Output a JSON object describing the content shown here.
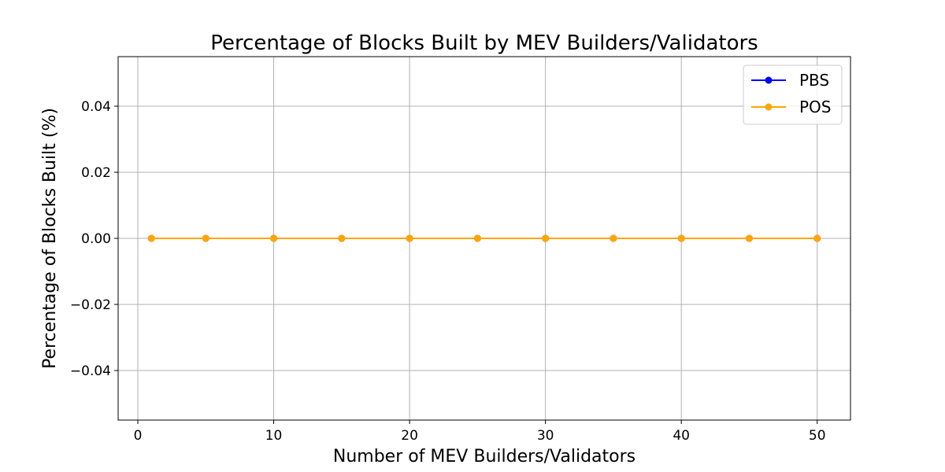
{
  "chart_data": {
    "type": "line",
    "title": "Percentage of Blocks Built by MEV Builders/Validators",
    "xlabel": "Number of MEV Builders/Validators",
    "ylabel": "Percentage of Blocks Built (%)",
    "xlim": [
      -1.45,
      52.45
    ],
    "ylim": [
      -0.055,
      0.055
    ],
    "xticks": [
      0,
      10,
      20,
      30,
      40,
      50
    ],
    "xtick_labels": [
      "0",
      "10",
      "20",
      "30",
      "40",
      "50"
    ],
    "yticks": [
      -0.04,
      -0.02,
      0.0,
      0.02,
      0.04
    ],
    "ytick_labels": [
      "−0.04",
      "−0.02",
      "0.00",
      "0.02",
      "0.04"
    ],
    "grid": true,
    "legend_position": "top-right",
    "x": [
      1,
      5,
      10,
      15,
      20,
      25,
      30,
      35,
      40,
      45,
      50
    ],
    "series": [
      {
        "name": "PBS",
        "color": "#0000ff",
        "marker": "circle",
        "values": [
          0,
          0,
          0,
          0,
          0,
          0,
          0,
          0,
          0,
          0,
          0
        ]
      },
      {
        "name": "POS",
        "color": "#ffa500",
        "marker": "circle",
        "values": [
          0,
          0,
          0,
          0,
          0,
          0,
          0,
          0,
          0,
          0,
          0
        ]
      }
    ]
  }
}
